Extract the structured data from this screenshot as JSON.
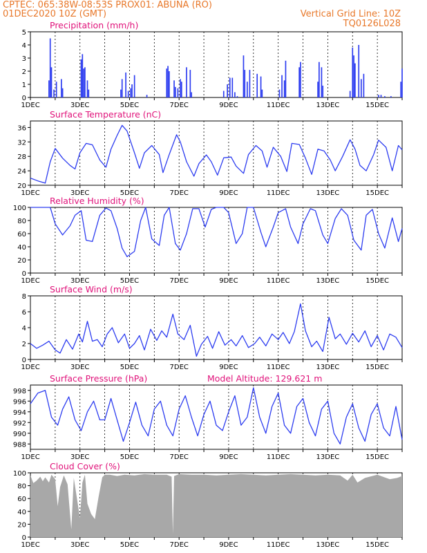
{
  "header": {
    "line1_left": "CPTEC:   065:38W-08:53S   PROX01: ABUNA (RO)",
    "line2_left": "01DEC2020 10Z (GMT)",
    "line2_right": "Vertical Grid Line: 10Z",
    "line3_right": "TQ0126L028",
    "accent_color": "#e8782a",
    "title_color": "#e0127a"
  },
  "x_ticks": [
    "1DEC",
    "3DEC",
    "5DEC",
    "7DEC",
    "9DEC",
    "11DEC",
    "13DEC",
    "15DEC"
  ],
  "chart_data": [
    {
      "type": "bar",
      "title": "Precipitation (mm/h)",
      "x_range": [
        0,
        15
      ],
      "ylim": [
        0,
        5
      ],
      "yticks": [
        0,
        1,
        2,
        3,
        4,
        5
      ],
      "color": "#2c3cf0",
      "x": [
        0.75,
        0.8,
        0.85,
        0.95,
        1.05,
        1.25,
        1.3,
        2.05,
        2.1,
        2.15,
        2.2,
        2.3,
        2.35,
        3.65,
        3.7,
        3.85,
        3.95,
        4.05,
        4.1,
        4.2,
        4.7,
        5.5,
        5.55,
        5.6,
        5.8,
        5.85,
        5.95,
        6.05,
        6.1,
        6.3,
        6.45,
        6.5,
        7.8,
        7.95,
        8.05,
        8.15,
        8.25,
        8.35,
        8.6,
        8.65,
        8.75,
        8.85,
        9.15,
        9.3,
        9.35,
        10.05,
        10.15,
        10.25,
        10.3,
        10.85,
        10.9,
        11.6,
        11.65,
        11.75,
        11.8,
        12.9,
        13.0,
        13.05,
        13.1,
        13.25,
        13.35,
        13.45,
        14.05,
        14.15,
        14.3,
        14.55,
        14.95,
        15.0
      ],
      "values": [
        1.3,
        4.5,
        2.3,
        0.6,
        1.2,
        1.4,
        0.7,
        2.9,
        3.3,
        2.2,
        2.3,
        1.3,
        0.6,
        0.6,
        1.4,
        1.9,
        0.5,
        0.7,
        1.0,
        1.7,
        0.2,
        2.2,
        2.4,
        2.0,
        1.3,
        0.8,
        0.7,
        1.4,
        1.2,
        2.3,
        2.1,
        0.4,
        0.5,
        1.0,
        1.5,
        1.5,
        0.4,
        0.1,
        3.2,
        2.1,
        1.2,
        2.1,
        1.8,
        1.6,
        0.6,
        0.6,
        1.7,
        1.3,
        2.8,
        2.3,
        2.7,
        1.2,
        2.7,
        2.3,
        0.9,
        0.5,
        3.8,
        3.2,
        2.6,
        4.0,
        1.4,
        1.8,
        0.2,
        0.2,
        0.1,
        0.1,
        1.2,
        2.2
      ]
    },
    {
      "type": "line",
      "title": "Surface Temperature (nC)",
      "x_range": [
        0,
        15
      ],
      "ylim": [
        20,
        37.8
      ],
      "yticks": [
        20,
        24,
        28,
        32,
        36
      ],
      "color": "#2c3cf0",
      "x": [
        0,
        0.3,
        0.6,
        0.8,
        1.0,
        1.3,
        1.6,
        1.8,
        2.0,
        2.25,
        2.5,
        2.8,
        3.05,
        3.25,
        3.5,
        3.7,
        3.9,
        4.2,
        4.4,
        4.6,
        4.9,
        5.2,
        5.35,
        5.6,
        5.9,
        6.05,
        6.3,
        6.6,
        6.8,
        7.1,
        7.3,
        7.55,
        7.8,
        8.1,
        8.3,
        8.6,
        8.8,
        9.1,
        9.35,
        9.55,
        9.8,
        10.1,
        10.35,
        10.55,
        10.85,
        11.1,
        11.35,
        11.6,
        11.85,
        12.1,
        12.3,
        12.6,
        12.9,
        13.1,
        13.3,
        13.55,
        13.85,
        14.05,
        14.35,
        14.6,
        14.85,
        15.0
      ],
      "values": [
        22.0,
        21.2,
        20.6,
        26.5,
        30.2,
        27.5,
        25.5,
        24.5,
        29.0,
        31.6,
        31.2,
        27.0,
        25.0,
        30.0,
        33.8,
        36.6,
        35.0,
        29.0,
        24.7,
        29.0,
        31.0,
        28.5,
        23.5,
        28.5,
        34.0,
        32.0,
        26.5,
        22.5,
        26.0,
        28.4,
        26.5,
        22.8,
        27.6,
        27.8,
        25.3,
        23.3,
        28.5,
        31.0,
        29.5,
        25.0,
        30.5,
        28.0,
        23.8,
        31.6,
        31.3,
        27.5,
        23.0,
        30.0,
        29.5,
        27.0,
        24.0,
        28.0,
        32.6,
        30.0,
        25.5,
        24.0,
        28.5,
        32.5,
        30.5,
        24.0,
        31.0,
        29.8
      ]
    },
    {
      "type": "line",
      "title": "Relative Humidity (%)",
      "x_range": [
        0,
        15
      ],
      "ylim": [
        0,
        100
      ],
      "yticks": [
        0,
        20,
        40,
        60,
        80,
        100
      ],
      "color": "#2c3cf0",
      "x": [
        0,
        0.5,
        0.8,
        1.0,
        1.3,
        1.6,
        1.8,
        2.05,
        2.25,
        2.5,
        2.8,
        3.05,
        3.25,
        3.5,
        3.7,
        3.9,
        4.2,
        4.45,
        4.65,
        4.9,
        5.2,
        5.4,
        5.6,
        5.85,
        6.05,
        6.3,
        6.55,
        6.8,
        7.05,
        7.3,
        7.5,
        7.8,
        8.0,
        8.3,
        8.55,
        8.75,
        9.0,
        9.3,
        9.5,
        9.8,
        10.0,
        10.3,
        10.5,
        10.8,
        11.0,
        11.3,
        11.5,
        11.8,
        12.0,
        12.3,
        12.55,
        12.8,
        13.05,
        13.35,
        13.55,
        13.8,
        14.05,
        14.3,
        14.6,
        14.85,
        15.0
      ],
      "values": [
        100,
        100,
        100,
        75,
        58,
        72,
        88,
        95,
        50,
        48,
        88,
        99,
        95,
        68,
        38,
        25,
        33,
        80,
        100,
        52,
        42,
        88,
        100,
        45,
        35,
        60,
        98,
        98,
        70,
        97,
        100,
        100,
        92,
        45,
        60,
        100,
        100,
        62,
        40,
        70,
        92,
        98,
        70,
        45,
        75,
        98,
        95,
        58,
        45,
        83,
        98,
        88,
        50,
        35,
        88,
        97,
        60,
        38,
        84,
        48,
        68
      ]
    },
    {
      "type": "line",
      "title": "Surface Wind (m/s)",
      "x_range": [
        0,
        15
      ],
      "ylim": [
        0,
        8
      ],
      "yticks": [
        0,
        2,
        4,
        6,
        8
      ],
      "color": "#2c3cf0",
      "x": [
        0,
        0.25,
        0.5,
        0.75,
        1.0,
        1.2,
        1.45,
        1.7,
        1.95,
        2.1,
        2.3,
        2.5,
        2.7,
        2.9,
        3.1,
        3.3,
        3.55,
        3.8,
        4.0,
        4.2,
        4.4,
        4.6,
        4.85,
        5.1,
        5.3,
        5.5,
        5.75,
        5.95,
        6.2,
        6.45,
        6.7,
        6.9,
        7.15,
        7.35,
        7.6,
        7.85,
        8.1,
        8.3,
        8.55,
        8.8,
        9.05,
        9.25,
        9.5,
        9.75,
        10.0,
        10.2,
        10.45,
        10.65,
        10.9,
        11.1,
        11.35,
        11.55,
        11.8,
        12.05,
        12.3,
        12.5,
        12.75,
        13.0,
        13.25,
        13.5,
        13.75,
        14.0,
        14.25,
        14.5,
        14.75,
        15.0
      ],
      "values": [
        2.0,
        1.4,
        1.8,
        2.3,
        1.2,
        0.8,
        2.5,
        1.3,
        3.2,
        2.2,
        4.8,
        2.3,
        2.5,
        1.6,
        3.2,
        4.0,
        2.1,
        3.2,
        1.4,
        2.0,
        3.0,
        1.2,
        3.8,
        2.4,
        3.6,
        2.8,
        5.7,
        3.2,
        2.5,
        4.3,
        0.4,
        1.9,
        2.9,
        1.4,
        3.5,
        1.8,
        2.5,
        1.7,
        3.0,
        1.5,
        2.0,
        2.8,
        1.7,
        3.2,
        2.5,
        3.4,
        2.0,
        3.5,
        7.0,
        3.6,
        1.6,
        2.3,
        1.0,
        5.3,
        2.6,
        3.2,
        1.9,
        3.3,
        2.2,
        3.6,
        1.6,
        3.0,
        1.2,
        3.2,
        2.8,
        1.5
      ]
    },
    {
      "type": "line",
      "title": "Surface Pressure (hPa)",
      "subtitle": "Model Altitude: 129.621 m",
      "x_range": [
        0,
        15
      ],
      "ylim": [
        987,
        999
      ],
      "yticks": [
        988,
        990,
        992,
        994,
        996,
        998
      ],
      "color": "#2c3cf0",
      "x": [
        0,
        0.3,
        0.6,
        0.85,
        1.1,
        1.3,
        1.55,
        1.8,
        2.05,
        2.3,
        2.55,
        2.8,
        3.0,
        3.25,
        3.5,
        3.75,
        4.0,
        4.25,
        4.5,
        4.75,
        5.0,
        5.25,
        5.5,
        5.75,
        6.0,
        6.25,
        6.5,
        6.75,
        7.0,
        7.25,
        7.5,
        7.75,
        8.0,
        8.25,
        8.5,
        8.75,
        9.0,
        9.25,
        9.5,
        9.75,
        10.0,
        10.25,
        10.5,
        10.75,
        11.0,
        11.25,
        11.5,
        11.75,
        12.0,
        12.25,
        12.5,
        12.75,
        13.0,
        13.25,
        13.5,
        13.75,
        14.0,
        14.25,
        14.5,
        14.75,
        15.0
      ],
      "values": [
        995.5,
        997.5,
        998.0,
        993.0,
        991.5,
        994.5,
        996.8,
        992.5,
        990.5,
        994.0,
        996.0,
        992.5,
        992.5,
        996.5,
        992.5,
        988.5,
        992.0,
        995.8,
        991.5,
        989.5,
        994.5,
        996.0,
        991.5,
        989.5,
        994.5,
        997.0,
        993.0,
        989.5,
        993.5,
        996.0,
        991.5,
        990.5,
        994.0,
        997.0,
        991.5,
        993.0,
        998.5,
        993.0,
        990.0,
        995.0,
        997.5,
        991.5,
        990.0,
        995.0,
        996.5,
        992.0,
        989.5,
        994.5,
        996.0,
        990.0,
        988.0,
        993.0,
        995.5,
        991.0,
        988.5,
        993.5,
        995.5,
        991.0,
        989.5,
        995.0,
        988.8
      ]
    },
    {
      "type": "area",
      "title": "Cloud Cover (%)",
      "x_range": [
        0,
        15
      ],
      "ylim": [
        0,
        100
      ],
      "yticks": [
        0,
        20,
        40,
        60,
        80,
        100
      ],
      "color": "#a8a8a8",
      "x": [
        0,
        0.12,
        0.25,
        0.4,
        0.5,
        0.6,
        0.75,
        0.85,
        1.0,
        1.1,
        1.2,
        1.35,
        1.5,
        1.65,
        1.75,
        1.9,
        2.0,
        2.1,
        2.2,
        2.3,
        2.45,
        2.6,
        2.75,
        2.9,
        3.0,
        3.2,
        3.5,
        3.8,
        4.2,
        4.6,
        5.0,
        5.5,
        5.7,
        5.75,
        5.8,
        6.0,
        6.5,
        7.0,
        7.5,
        8.0,
        8.5,
        9.0,
        9.5,
        10.0,
        10.5,
        11.0,
        11.5,
        12.0,
        12.5,
        12.8,
        13.0,
        13.2,
        13.5,
        14.0,
        14.5,
        14.8,
        15.0
      ],
      "values": [
        96,
        84,
        88,
        94,
        87,
        93,
        85,
        97,
        90,
        48,
        78,
        96,
        82,
        12,
        92,
        55,
        30,
        85,
        97,
        52,
        36,
        28,
        62,
        93,
        97,
        97,
        95,
        97,
        96,
        98,
        97,
        97,
        94,
        5,
        95,
        98,
        97,
        97,
        96,
        97,
        98,
        97,
        96,
        97,
        98,
        97,
        96,
        97,
        96,
        88,
        97,
        85,
        92,
        97,
        90,
        92,
        95
      ]
    }
  ]
}
